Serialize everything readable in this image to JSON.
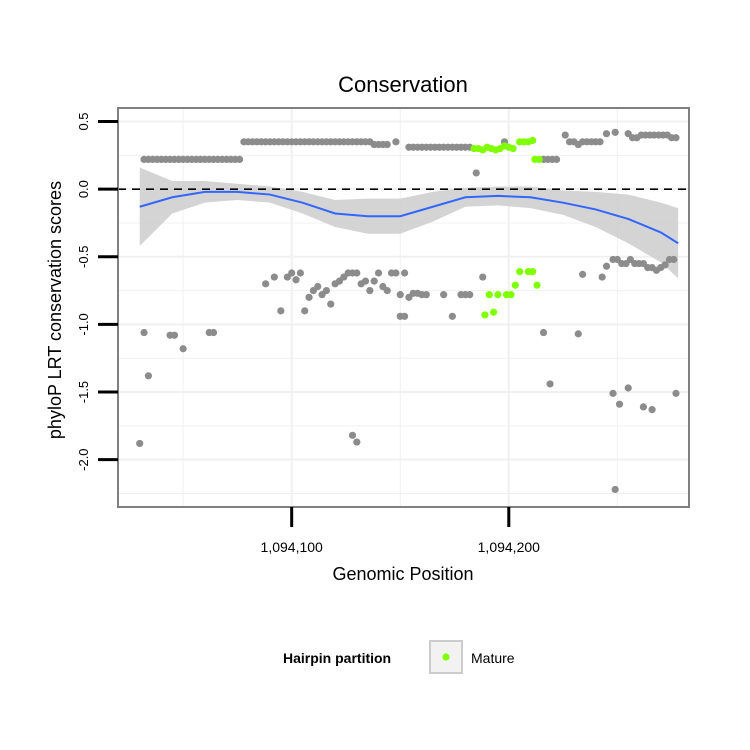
{
  "chart_data": {
    "type": "scatter",
    "title": "Conservation",
    "xlabel": "Genomic Position",
    "ylabel": "phyloP LRT conservation scores",
    "xlim": [
      1094020,
      1094283
    ],
    "ylim": [
      -2.35,
      0.6
    ],
    "x_ticks": [
      1094100,
      1094200
    ],
    "x_tick_labels": [
      "1,094,100",
      "1,094,200"
    ],
    "y_ticks": [
      0.5,
      0.0,
      -0.5,
      -1.0,
      -1.5,
      -2.0
    ],
    "y_tick_labels": [
      "0.5",
      "0.0",
      "-0.5",
      "-1.0",
      "-1.5",
      "-2.0"
    ],
    "reference_line": {
      "y": 0,
      "style": "dashed",
      "color": "#000000"
    },
    "grid": true,
    "colors": {
      "other": "#8c8c8c",
      "mature": "#7fff00",
      "smooth_line": "#3366ff",
      "confidence_band": "#cccccc",
      "panel_border": "#808080",
      "grid": "#f0f0f0"
    },
    "legend": {
      "title": "Hairpin partition",
      "position": "bottom",
      "entries": [
        {
          "label": "Mature",
          "color": "#7fff00"
        }
      ]
    },
    "series": [
      {
        "name": "Mature",
        "color": "#7fff00",
        "points": [
          [
            1094184,
            0.3
          ],
          [
            1094186,
            0.3
          ],
          [
            1094188,
            0.29
          ],
          [
            1094190,
            0.31
          ],
          [
            1094192,
            0.3
          ],
          [
            1094194,
            0.29
          ],
          [
            1094196,
            0.3
          ],
          [
            1094198,
            0.32
          ],
          [
            1094200,
            0.31
          ],
          [
            1094202,
            0.3
          ],
          [
            1094205,
            0.35
          ],
          [
            1094207,
            0.35
          ],
          [
            1094209,
            0.35
          ],
          [
            1094211,
            0.36
          ],
          [
            1094212,
            0.22
          ],
          [
            1094214,
            0.22
          ],
          [
            1094189,
            -0.93
          ],
          [
            1094191,
            -0.78
          ],
          [
            1094193,
            -0.91
          ],
          [
            1094195,
            -0.78
          ],
          [
            1094199,
            -0.78
          ],
          [
            1094201,
            -0.78
          ],
          [
            1094203,
            -0.71
          ],
          [
            1094205,
            -0.61
          ],
          [
            1094209,
            -0.61
          ],
          [
            1094211,
            -0.61
          ],
          [
            1094213,
            -0.71
          ]
        ]
      },
      {
        "name": "",
        "color": "#8c8c8c",
        "points": [
          [
            1094032,
            0.22
          ],
          [
            1094034,
            0.22
          ],
          [
            1094036,
            0.22
          ],
          [
            1094038,
            0.22
          ],
          [
            1094040,
            0.22
          ],
          [
            1094042,
            0.22
          ],
          [
            1094044,
            0.22
          ],
          [
            1094046,
            0.22
          ],
          [
            1094048,
            0.22
          ],
          [
            1094050,
            0.22
          ],
          [
            1094052,
            0.22
          ],
          [
            1094054,
            0.22
          ],
          [
            1094056,
            0.22
          ],
          [
            1094058,
            0.22
          ],
          [
            1094060,
            0.22
          ],
          [
            1094062,
            0.22
          ],
          [
            1094064,
            0.22
          ],
          [
            1094066,
            0.22
          ],
          [
            1094068,
            0.22
          ],
          [
            1094070,
            0.22
          ],
          [
            1094072,
            0.22
          ],
          [
            1094074,
            0.22
          ],
          [
            1094076,
            0.22
          ],
          [
            1094078,
            0.35
          ],
          [
            1094080,
            0.35
          ],
          [
            1094082,
            0.35
          ],
          [
            1094084,
            0.35
          ],
          [
            1094086,
            0.35
          ],
          [
            1094088,
            0.35
          ],
          [
            1094090,
            0.35
          ],
          [
            1094092,
            0.35
          ],
          [
            1094094,
            0.35
          ],
          [
            1094096,
            0.35
          ],
          [
            1094098,
            0.35
          ],
          [
            1094100,
            0.35
          ],
          [
            1094102,
            0.35
          ],
          [
            1094104,
            0.35
          ],
          [
            1094106,
            0.35
          ],
          [
            1094108,
            0.35
          ],
          [
            1094110,
            0.35
          ],
          [
            1094112,
            0.35
          ],
          [
            1094114,
            0.35
          ],
          [
            1094116,
            0.35
          ],
          [
            1094118,
            0.35
          ],
          [
            1094120,
            0.35
          ],
          [
            1094122,
            0.35
          ],
          [
            1094124,
            0.35
          ],
          [
            1094126,
            0.35
          ],
          [
            1094128,
            0.35
          ],
          [
            1094130,
            0.35
          ],
          [
            1094132,
            0.35
          ],
          [
            1094134,
            0.35
          ],
          [
            1094136,
            0.35
          ],
          [
            1094138,
            0.33
          ],
          [
            1094140,
            0.33
          ],
          [
            1094142,
            0.33
          ],
          [
            1094144,
            0.33
          ],
          [
            1094148,
            0.35
          ],
          [
            1094154,
            0.31
          ],
          [
            1094156,
            0.31
          ],
          [
            1094158,
            0.31
          ],
          [
            1094160,
            0.31
          ],
          [
            1094162,
            0.31
          ],
          [
            1094164,
            0.31
          ],
          [
            1094166,
            0.31
          ],
          [
            1094168,
            0.31
          ],
          [
            1094170,
            0.31
          ],
          [
            1094172,
            0.31
          ],
          [
            1094174,
            0.31
          ],
          [
            1094176,
            0.31
          ],
          [
            1094178,
            0.31
          ],
          [
            1094180,
            0.31
          ],
          [
            1094182,
            0.31
          ],
          [
            1094185,
            0.12
          ],
          [
            1094198,
            0.35
          ],
          [
            1094216,
            0.22
          ],
          [
            1094218,
            0.22
          ],
          [
            1094220,
            0.22
          ],
          [
            1094222,
            0.22
          ],
          [
            1094226,
            0.4
          ],
          [
            1094228,
            0.35
          ],
          [
            1094230,
            0.35
          ],
          [
            1094232,
            0.33
          ],
          [
            1094234,
            0.35
          ],
          [
            1094236,
            0.35
          ],
          [
            1094238,
            0.35
          ],
          [
            1094240,
            0.35
          ],
          [
            1094242,
            0.35
          ],
          [
            1094245,
            0.41
          ],
          [
            1094249,
            0.42
          ],
          [
            1094255,
            0.41
          ],
          [
            1094257,
            0.38
          ],
          [
            1094259,
            0.38
          ],
          [
            1094261,
            0.4
          ],
          [
            1094263,
            0.4
          ],
          [
            1094265,
            0.4
          ],
          [
            1094267,
            0.4
          ],
          [
            1094269,
            0.4
          ],
          [
            1094271,
            0.4
          ],
          [
            1094273,
            0.4
          ],
          [
            1094275,
            0.38
          ],
          [
            1094277,
            0.38
          ],
          [
            1094030,
            -1.88
          ],
          [
            1094032,
            -1.06
          ],
          [
            1094034,
            -1.38
          ],
          [
            1094044,
            -1.08
          ],
          [
            1094046,
            -1.08
          ],
          [
            1094050,
            -1.18
          ],
          [
            1094062,
            -1.06
          ],
          [
            1094064,
            -1.06
          ],
          [
            1094088,
            -0.7
          ],
          [
            1094092,
            -0.65
          ],
          [
            1094095,
            -0.9
          ],
          [
            1094098,
            -0.65
          ],
          [
            1094100,
            -0.62
          ],
          [
            1094102,
            -0.67
          ],
          [
            1094104,
            -0.62
          ],
          [
            1094106,
            -0.9
          ],
          [
            1094108,
            -0.8
          ],
          [
            1094110,
            -0.75
          ],
          [
            1094112,
            -0.72
          ],
          [
            1094114,
            -0.78
          ],
          [
            1094116,
            -0.75
          ],
          [
            1094118,
            -0.85
          ],
          [
            1094120,
            -0.7
          ],
          [
            1094122,
            -0.68
          ],
          [
            1094124,
            -0.65
          ],
          [
            1094126,
            -0.62
          ],
          [
            1094128,
            -0.62
          ],
          [
            1094130,
            -0.62
          ],
          [
            1094132,
            -0.7
          ],
          [
            1094134,
            -0.68
          ],
          [
            1094136,
            -0.75
          ],
          [
            1094138,
            -0.68
          ],
          [
            1094140,
            -0.62
          ],
          [
            1094142,
            -0.72
          ],
          [
            1094144,
            -0.75
          ],
          [
            1094146,
            -0.62
          ],
          [
            1094148,
            -0.62
          ],
          [
            1094150,
            -0.78
          ],
          [
            1094152,
            -0.62
          ],
          [
            1094154,
            -0.8
          ],
          [
            1094156,
            -0.77
          ],
          [
            1094158,
            -0.77
          ],
          [
            1094160,
            -0.78
          ],
          [
            1094162,
            -0.78
          ],
          [
            1094150,
            -0.94
          ],
          [
            1094152,
            -0.94
          ],
          [
            1094128,
            -1.82
          ],
          [
            1094130,
            -1.87
          ],
          [
            1094170,
            -0.78
          ],
          [
            1094174,
            -0.94
          ],
          [
            1094178,
            -0.78
          ],
          [
            1094180,
            -0.78
          ],
          [
            1094182,
            -0.78
          ],
          [
            1094188,
            -0.65
          ],
          [
            1094216,
            -1.06
          ],
          [
            1094219,
            -1.44
          ],
          [
            1094232,
            -1.07
          ],
          [
            1094234,
            -0.63
          ],
          [
            1094243,
            -0.65
          ],
          [
            1094245,
            -0.57
          ],
          [
            1094248,
            -0.52
          ],
          [
            1094250,
            -0.52
          ],
          [
            1094252,
            -0.55
          ],
          [
            1094254,
            -0.55
          ],
          [
            1094256,
            -0.52
          ],
          [
            1094258,
            -0.55
          ],
          [
            1094260,
            -0.55
          ],
          [
            1094262,
            -0.55
          ],
          [
            1094264,
            -0.58
          ],
          [
            1094266,
            -0.58
          ],
          [
            1094268,
            -0.6
          ],
          [
            1094270,
            -0.58
          ],
          [
            1094272,
            -0.56
          ],
          [
            1094274,
            -0.52
          ],
          [
            1094276,
            -0.52
          ],
          [
            1094248,
            -1.51
          ],
          [
            1094251,
            -1.59
          ],
          [
            1094255,
            -1.47
          ],
          [
            1094262,
            -1.61
          ],
          [
            1094266,
            -1.63
          ],
          [
            1094277,
            -1.51
          ],
          [
            1094249,
            -2.22
          ]
        ]
      }
    ],
    "smooth": {
      "x": [
        1094030,
        1094045,
        1094060,
        1094075,
        1094090,
        1094105,
        1094120,
        1094135,
        1094150,
        1094165,
        1094180,
        1094195,
        1094210,
        1094225,
        1094240,
        1094255,
        1094270,
        1094278
      ],
      "y": [
        -0.13,
        -0.06,
        -0.02,
        -0.02,
        -0.04,
        -0.1,
        -0.18,
        -0.2,
        -0.2,
        -0.13,
        -0.06,
        -0.05,
        -0.06,
        -0.1,
        -0.15,
        -0.22,
        -0.32,
        -0.4
      ],
      "lower": [
        -0.42,
        -0.18,
        -0.1,
        -0.08,
        -0.1,
        -0.18,
        -0.28,
        -0.33,
        -0.33,
        -0.24,
        -0.13,
        -0.12,
        -0.14,
        -0.19,
        -0.28,
        -0.4,
        -0.54,
        -0.66
      ],
      "upper": [
        0.16,
        0.06,
        0.06,
        0.04,
        0.02,
        -0.02,
        -0.08,
        -0.07,
        -0.07,
        -0.02,
        0.01,
        0.02,
        0.02,
        -0.01,
        -0.02,
        -0.04,
        -0.1,
        -0.14
      ]
    }
  }
}
